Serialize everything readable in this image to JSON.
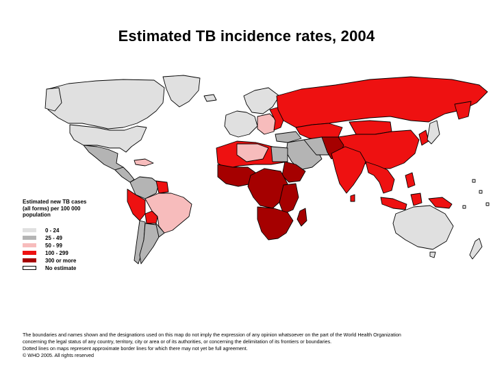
{
  "title": "Estimated TB incidence rates, 2004",
  "colors": {
    "band_0_24": "#e0e0e0",
    "band_25_49": "#b4b4b4",
    "band_50_99": "#f7bcbc",
    "band_100_299": "#ee1111",
    "band_300_plus": "#a50000",
    "no_estimate": "#ffffff"
  },
  "legend": {
    "title": "Estimated new TB cases (all forms) per 100 000 population",
    "items": [
      {
        "label": "0 - 24",
        "color": "#e0e0e0"
      },
      {
        "label": "25 - 49",
        "color": "#b4b4b4"
      },
      {
        "label": "50 - 99",
        "color": "#f7bcbc"
      },
      {
        "label": "100 - 299",
        "color": "#ee1111"
      },
      {
        "label": "300 or more",
        "color": "#a50000"
      },
      {
        "label": "No estimate",
        "color": "#ffffff"
      }
    ]
  },
  "footnote": {
    "line1": "The boundaries and names shown and the designations used on this map do not imply the expression of any opinion whatsoever on the part of the World Health Organization",
    "line2": "concerning the legal status of any country, territory, city or area or of its authorities, or concerning the delimitation of its frontiers or boundaries.",
    "line3": "Dotted lines on maps represent approximate border lines for which there may not yet be full agreement.",
    "line4": "© WHO 2005. All rights reserved"
  }
}
